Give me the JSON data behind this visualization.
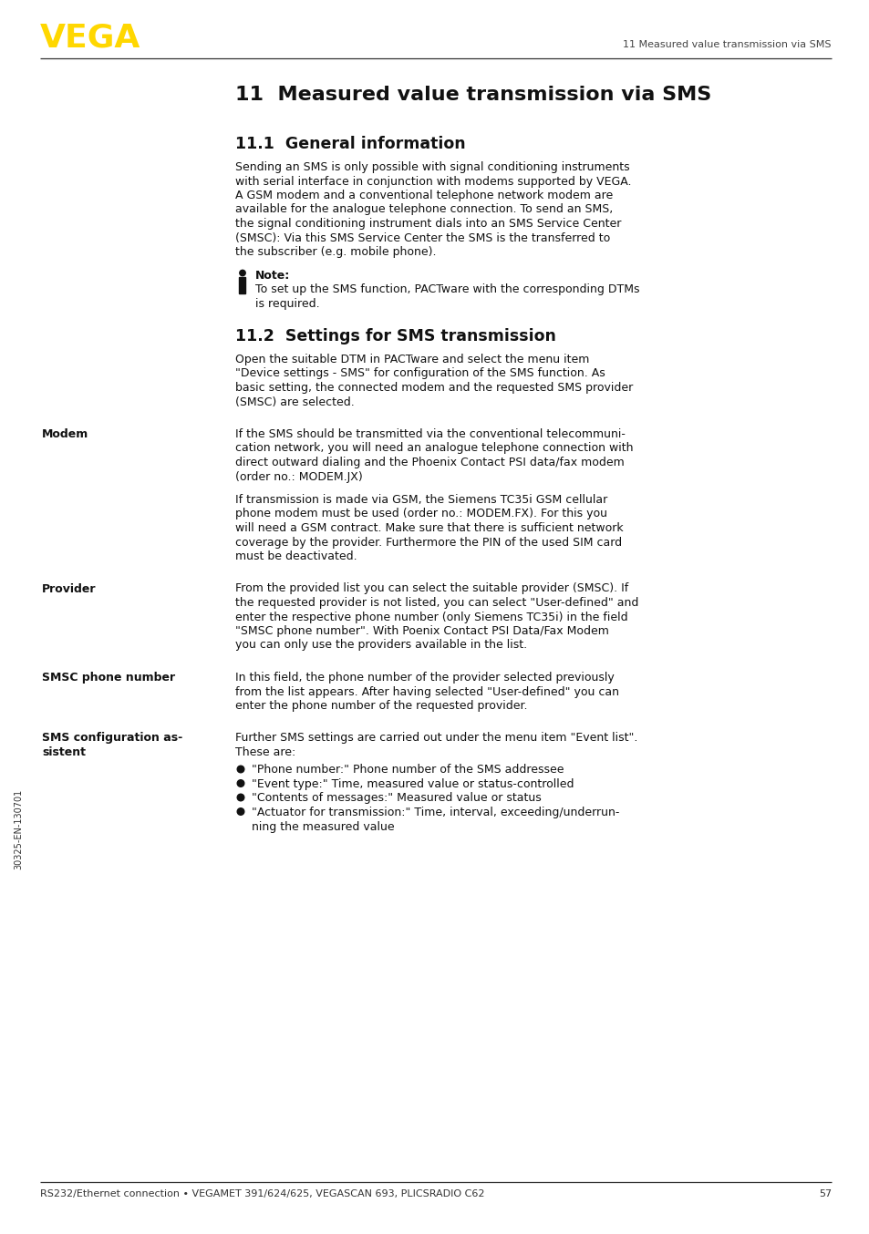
{
  "page_bg": "#ffffff",
  "vega_text": "VEGA",
  "vega_color": "#FFD700",
  "header_right_text": "11 Measured value transmission via SMS",
  "footer_text": "RS232/Ethernet connection • VEGAMET 391/624/625, VEGASCAN 693, PLICSRADIO C62",
  "footer_page": "57",
  "sidebar_text": "30325-EN-130701",
  "chapter_title": "11  Measured value transmission via SMS",
  "section1_title": "11.1  General information",
  "section1_body": "Sending an SMS is only possible with signal conditioning instruments\nwith serial interface in conjunction with modems supported by VEGA.\nA GSM modem and a conventional telephone network modem are\navailable for the analogue telephone connection. To send an SMS,\nthe signal conditioning instrument dials into an SMS Service Center\n(SMSC): Via this SMS Service Center the SMS is the transferred to\nthe subscriber (e.g. mobile phone).",
  "note_label": "Note:",
  "note_body": "To set up the SMS function, PACTware with the corresponding DTMs\nis required.",
  "section2_title": "11.2  Settings for SMS transmission",
  "section2_intro": "Open the suitable DTM in PACTware and select the menu item\n\"Device settings - SMS\" for configuration of the SMS function. As\nbasic setting, the connected modem and the requested SMS provider\n(SMSC) are selected.",
  "modem_label": "Modem",
  "modem_body1": "If the SMS should be transmitted via the conventional telecommuni-\ncation network, you will need an analogue telephone connection with\ndirect outward dialing and the Phoenix Contact PSI data/fax modem\n(order no.: MODEM.JX)",
  "modem_body2": "If transmission is made via GSM, the Siemens TC35i GSM cellular\nphone modem must be used (order no.: MODEM.FX). For this you\nwill need a GSM contract. Make sure that there is sufficient network\ncoverage by the provider. Furthermore the PIN of the used SIM card\nmust be deactivated.",
  "provider_label": "Provider",
  "provider_body": "From the provided list you can select the suitable provider (SMSC). If\nthe requested provider is not listed, you can select \"User-defined\" and\nenter the respective phone number (only Siemens TC35i) in the field\n\"SMSC phone number\". With Poenix Contact PSI Data/Fax Modem\nyou can only use the providers available in the list.",
  "smsc_label": "SMSC phone number",
  "smsc_body": "In this field, the phone number of the provider selected previously\nfrom the list appears. After having selected \"User-defined\" you can\nenter the phone number of the requested provider.",
  "sms_config_label_line1": "SMS configuration as-",
  "sms_config_label_line2": "sistent",
  "sms_config_body": "Further SMS settings are carried out under the menu item \"Event list\".\nThese are:",
  "bullet_items": [
    "\"Phone number:\" Phone number of the SMS addressee",
    "\"Event type:\" Time, measured value or status-controlled",
    "\"Contents of messages:\" Measured value or status",
    "\"Actuator for transmission:\" Time, interval, exceeding/underrun-\nning the measured value"
  ]
}
